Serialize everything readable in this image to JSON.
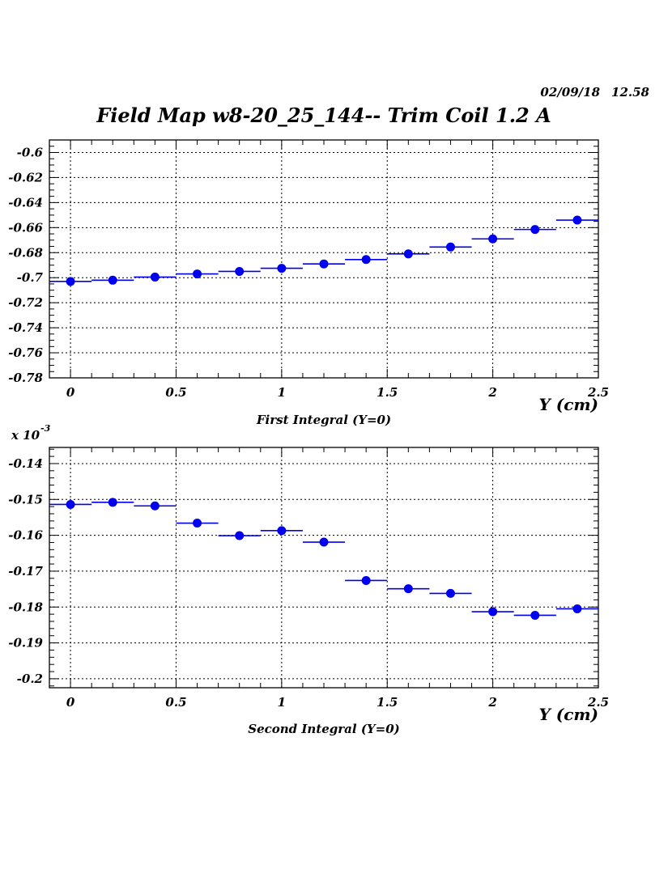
{
  "header": {
    "date": "02/09/18",
    "time": "12.58",
    "title": "Field Map w8-20_25_144-- Trim Coil 1.2 A"
  },
  "colors": {
    "marker": "#0000ee",
    "axis": "#000000",
    "grid": "#000000"
  },
  "chart_data": [
    {
      "type": "scatter",
      "caption": "First Integral (Y=0)",
      "xlabel": "Y (cm)",
      "ylabel": "",
      "exponent_label": "",
      "xlim": [
        -0.1,
        2.5
      ],
      "ylim": [
        -0.78,
        -0.59
      ],
      "xticks": [
        0,
        0.5,
        1,
        1.5,
        2,
        2.5
      ],
      "xtick_labels": [
        "0",
        "0.5",
        "1",
        "1.5",
        "2",
        "2.5"
      ],
      "yticks": [
        -0.6,
        -0.62,
        -0.64,
        -0.66,
        -0.68,
        -0.7,
        -0.72,
        -0.74,
        -0.76,
        -0.78
      ],
      "ytick_labels": [
        "-0.6",
        "-0.62",
        "-0.64",
        "-0.66",
        "-0.68",
        "-0.7",
        "-0.72",
        "-0.74",
        "-0.76",
        "-0.78"
      ],
      "grid": true,
      "x_error": 0.1,
      "x": [
        0,
        0.2,
        0.4,
        0.6,
        0.8,
        1.0,
        1.2,
        1.4,
        1.6,
        1.8,
        2.0,
        2.2,
        2.4
      ],
      "y": [
        -0.703,
        -0.702,
        -0.6995,
        -0.697,
        -0.695,
        -0.6925,
        -0.689,
        -0.6855,
        -0.681,
        -0.6755,
        -0.669,
        -0.6615,
        -0.654
      ]
    },
    {
      "type": "scatter",
      "caption": "Second Integral (Y=0)",
      "xlabel": "Y (cm)",
      "ylabel": "",
      "exponent_label": "x 10",
      "exponent_power": "-3",
      "xlim": [
        -0.1,
        2.5
      ],
      "ylim": [
        -0.2025,
        -0.1355
      ],
      "xticks": [
        0,
        0.5,
        1,
        1.5,
        2,
        2.5
      ],
      "xtick_labels": [
        "0",
        "0.5",
        "1",
        "1.5",
        "2",
        "2.5"
      ],
      "yticks": [
        -0.14,
        -0.15,
        -0.16,
        -0.17,
        -0.18,
        -0.19,
        -0.2
      ],
      "ytick_labels": [
        "-0.14",
        "-0.15",
        "-0.16",
        "-0.17",
        "-0.18",
        "-0.19",
        "-0.2"
      ],
      "grid": true,
      "x_error": 0.1,
      "x": [
        0,
        0.2,
        0.4,
        0.6,
        0.8,
        1.0,
        1.2,
        1.4,
        1.6,
        1.8,
        2.0,
        2.2,
        2.4
      ],
      "y": [
        -0.1514,
        -0.1508,
        -0.1518,
        -0.1566,
        -0.1601,
        -0.1587,
        -0.1619,
        -0.1726,
        -0.1749,
        -0.1762,
        -0.1813,
        -0.1823,
        -0.1805
      ]
    }
  ]
}
